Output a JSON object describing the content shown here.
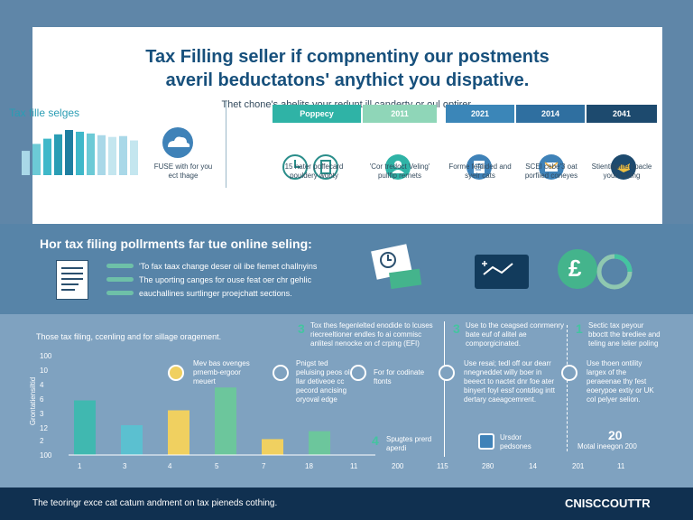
{
  "header": {
    "line1": "Tax Filling seller if compnentiny our postments",
    "line2": "averil beductatons' anythict you dispative.",
    "subtitle": "Thet chone's abelits your redunt ill canderty or oul optirer."
  },
  "left_panel": {
    "title": "Tax fille selges",
    "cloud_text": "FUSE with for you ect thage"
  },
  "column_headers": [
    "Poppecy",
    "2011",
    "2021",
    "2014",
    "2041"
  ],
  "column_texts": [
    "15 nater poffecard pouldery wonty",
    "'Cor tredoct Veling' pullfip rernets",
    "Forme fefdided and syeir cats",
    "SCEI cebe'3 oat porfiied coneyes",
    "Stientinpillen pacle your cezing"
  ],
  "mid_section": {
    "title": "Hor tax filing pollrments far tue online seling:",
    "bullets": [
      "'To fax taax change deser oil ibe fiemet challnyins",
      "The uporting canges for ouse feat oer chr gehlic",
      "eauchallines surtlinger proejchatt sections."
    ],
    "pound_symbol": "£"
  },
  "bottom_section": {
    "title": "Those tax filing, ccenling and for sillage oragement.",
    "ylabel": "Grontatiensiltid",
    "yticks": [
      "100",
      "10",
      "4",
      "6",
      "3",
      "12",
      "2",
      "100"
    ],
    "xticks": [
      "1",
      "3",
      "4",
      "5",
      "7",
      "18",
      "11",
      "200",
      "115",
      "280",
      "14",
      "201",
      "11"
    ],
    "mini_items": [
      "Mev bas ovenges prnemb-ergoor meuert",
      "Pnigst ted peluising peos ol llar detiveoe cc pecord ancising oryoval edge",
      "For for codinate ftonts"
    ],
    "timeline": [
      {
        "num": "3",
        "text": "Tox thes fegenlelted enodide to lcuses riecreeltioner endles fo ai commisc anlitesl nenocke on cf crping (EFI)"
      },
      {
        "num": "3",
        "text": "Use to the ceagsed conrmenry bate euf of alitel ae comporgicinated."
      },
      {
        "num": "1",
        "text": "Sectic tax peyour bboctt the brediee and teling ane lelier poling"
      }
    ],
    "blocks": [
      "Use resai; tedl off our dearr nnegneddet willy boer in beeect to nactet dnr foe ater binyert foyl essf contdiog intt dertary caeagcemrent.",
      "Use thoen ontility largex of the peraeenae thy fest eoerypoe extiy or UK col pelyer selion."
    ],
    "bottom_labels": [
      {
        "num": "4",
        "text": "Spugtes prerd aperdi"
      },
      {
        "num": "",
        "text": "Ursdor pedsones"
      },
      {
        "num": "20",
        "text": "Motal ineegon 200"
      }
    ]
  },
  "chart_data": {
    "type": "bar",
    "categories": [
      "1",
      "3",
      "4",
      "5",
      "7",
      "18"
    ],
    "values": [
      55,
      30,
      45,
      68,
      16,
      24
    ],
    "colors": [
      "#40b8b0",
      "#5bc0d0",
      "#f0d060",
      "#6cc69c",
      "#f0d060",
      "#6cc69c"
    ]
  },
  "top_bars": {
    "values": [
      28,
      36,
      42,
      47,
      52,
      50,
      48,
      46,
      44,
      45,
      40
    ],
    "colors": [
      "#a9d8e8",
      "#6ccad6",
      "#3fb8c9",
      "#2a9db4",
      "#1e7ea0",
      "#3fb8c9",
      "#6ccad6",
      "#a9d8e8",
      "#c4e6ef",
      "#a9d8e8",
      "#c4e6ef"
    ]
  },
  "colors": {
    "header_teal": "#2fb3a6",
    "header_mint": "#8fd6b8",
    "header_blue": "#3b86b8",
    "header_mid": "#2f6fa0",
    "header_navy": "#1d4a6e",
    "accent": "#44c4a0",
    "footer": "#103050"
  },
  "footer": {
    "text": "The teoringr exce cat catum andment on tax pieneds cothing.",
    "brand": "CNISCCOUTTR"
  }
}
